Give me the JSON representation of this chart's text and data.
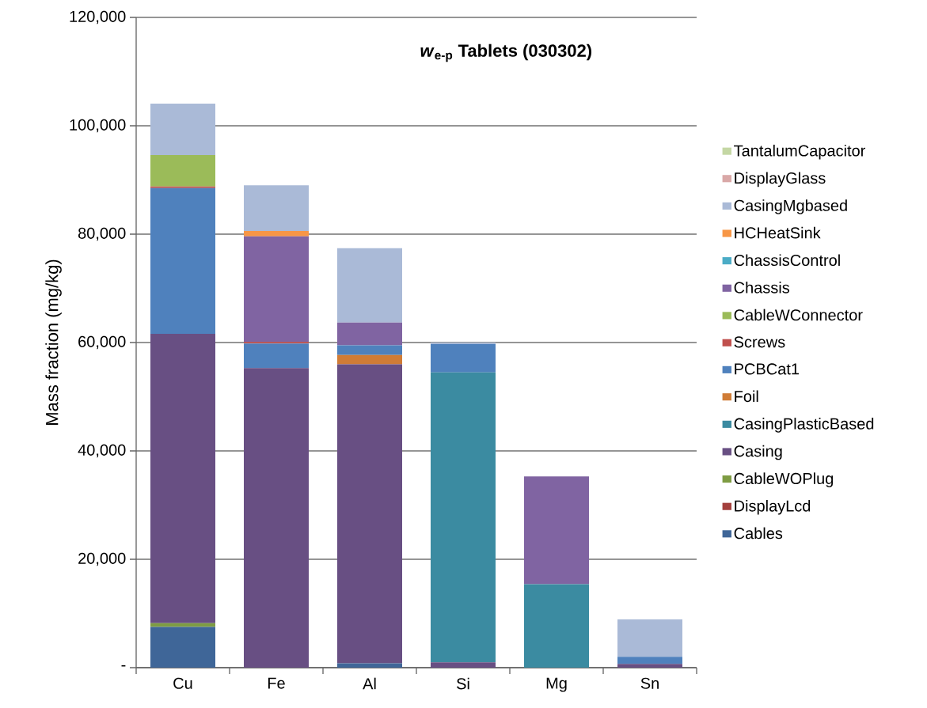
{
  "chart_data": {
    "type": "bar",
    "stacked": true,
    "title": "*w*$_{e-p}$ Tablets (030302)",
    "ylabel": "Mass fraction (mg/kg)",
    "categories": [
      "Cu",
      "Fe",
      "Al",
      "Si",
      "Mg",
      "Sn"
    ],
    "ylim": [
      0,
      120000
    ],
    "yticks": [
      {
        "value": 0,
        "label": "-"
      },
      {
        "value": 20000,
        "label": "20,000"
      },
      {
        "value": 40000,
        "label": "40,000"
      },
      {
        "value": 60000,
        "label": "60,000"
      },
      {
        "value": 80000,
        "label": "80,000"
      },
      {
        "value": 100000,
        "label": "100,000"
      },
      {
        "value": 120000,
        "label": "120,000"
      }
    ],
    "grid": "y",
    "legend": "right",
    "series": [
      {
        "name": "Cables",
        "color": "#3f6698",
        "values": [
          7500,
          0,
          800,
          0,
          0,
          0
        ]
      },
      {
        "name": "DisplayLcd",
        "color": "#a4403d",
        "values": [
          0,
          0,
          0,
          0,
          0,
          0
        ]
      },
      {
        "name": "CableWOPlug",
        "color": "#7e9c43",
        "values": [
          700,
          0,
          0,
          0,
          0,
          0
        ]
      },
      {
        "name": "Casing",
        "color": "#684f83",
        "values": [
          53400,
          55300,
          55200,
          1000,
          0,
          700
        ]
      },
      {
        "name": "CasingPlasticBased",
        "color": "#3b8ba1",
        "values": [
          0,
          0,
          0,
          53500,
          15400,
          0
        ]
      },
      {
        "name": "Foil",
        "color": "#d07c36",
        "values": [
          0,
          0,
          1700,
          0,
          0,
          0
        ]
      },
      {
        "name": "PCBCat1",
        "color": "#4f81bd",
        "values": [
          26900,
          4500,
          1800,
          5200,
          0,
          1300
        ]
      },
      {
        "name": "Screws",
        "color": "#c0504d",
        "values": [
          300,
          300,
          0,
          0,
          0,
          0
        ]
      },
      {
        "name": "CableWConnector",
        "color": "#9bbb59",
        "values": [
          5800,
          0,
          0,
          0,
          0,
          0
        ]
      },
      {
        "name": "Chassis",
        "color": "#8064a2",
        "values": [
          0,
          19500,
          4200,
          0,
          19900,
          0
        ]
      },
      {
        "name": "ChassisControl",
        "color": "#4bacc6",
        "values": [
          0,
          0,
          0,
          0,
          0,
          0
        ]
      },
      {
        "name": "HCHeatSink",
        "color": "#f79646",
        "values": [
          0,
          1000,
          0,
          0,
          0,
          null
        ]
      },
      {
        "name": "CasingMgbased",
        "color": "#aabad7",
        "values": [
          9500,
          8400,
          13700,
          300,
          0,
          6900
        ]
      },
      {
        "name": "DisplayGlass",
        "color": "#d9a8a7",
        "values": [
          0,
          0,
          0,
          0,
          0,
          0
        ]
      },
      {
        "name": "TantalumCapacitor",
        "color": "#c4d7a4",
        "values": [
          0,
          0,
          0,
          0,
          0,
          0
        ]
      }
    ]
  }
}
